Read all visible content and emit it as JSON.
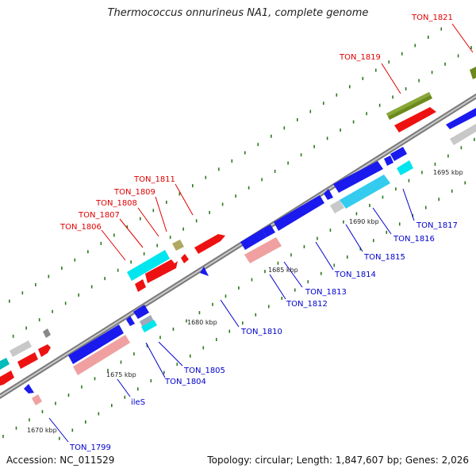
{
  "title": "Thermococcus onnurineus NA1, complete genome",
  "footer": {
    "accession": "Accession: NC_011529",
    "topology": "Topology: circular; Length: 1,847,607 bp; Genes: 2,026"
  },
  "colors": {
    "backbone": "#9a9a9a",
    "label_top": "#e00000",
    "label_bottom": "#0000cc",
    "tick_dot": "#2a7a1a"
  },
  "tick_labels": [
    "1670 kbp",
    "1675 kbp",
    "1680 kbp",
    "1685 kbp",
    "1690 kbp",
    "1695 kbp"
  ],
  "gene_labels_top": [
    "TON_1806",
    "TON_1807",
    "TON_1808",
    "TON_1809",
    "TON_1811",
    "TON_1819",
    "TON_1821"
  ],
  "gene_labels_bottom": [
    "TON_1799",
    "ileS",
    "TON_1804",
    "TON_1805",
    "TON_1810",
    "TON_1812",
    "TON_1813",
    "TON_1814",
    "TON_1815",
    "TON_1816",
    "TON_1817"
  ]
}
